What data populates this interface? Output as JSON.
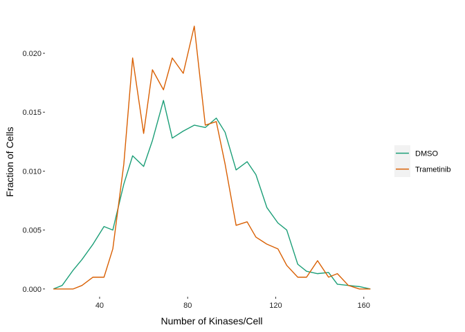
{
  "chart_data": {
    "type": "line",
    "title": "",
    "xlabel": "Number of Kinases/Cell",
    "ylabel": "Fraction of Cells",
    "xlim": [
      15.5,
      167
    ],
    "ylim": [
      -0.0006,
      0.0237
    ],
    "x_ticks": [
      40,
      80,
      120,
      160
    ],
    "x_tick_labels": [
      "40",
      "80",
      "120",
      "160"
    ],
    "y_ticks": [
      0.0,
      0.005,
      0.01,
      0.015,
      0.02
    ],
    "y_tick_labels": [
      "0.000",
      "0.005",
      "0.010",
      "0.015",
      "0.020"
    ],
    "grid": false,
    "legend_position": "right",
    "x": [
      19,
      23,
      28,
      32,
      37,
      42,
      46,
      51,
      55,
      60,
      64,
      69,
      73,
      78,
      83,
      88,
      93,
      97,
      102,
      107,
      111,
      116,
      121,
      125,
      130,
      134,
      139,
      144,
      148,
      153,
      158,
      163
    ],
    "series": [
      {
        "name": "DMSO",
        "color": "#1b9e77",
        "values": [
          0.0,
          0.0003,
          0.0016,
          0.0025,
          0.0038,
          0.0053,
          0.005,
          0.0089,
          0.0113,
          0.0104,
          0.0126,
          0.016,
          0.0128,
          0.0134,
          0.0139,
          0.0137,
          0.0145,
          0.0133,
          0.0101,
          0.0108,
          0.0097,
          0.0069,
          0.0056,
          0.005,
          0.0021,
          0.0015,
          0.0013,
          0.0014,
          0.0004,
          0.0003,
          0.0002,
          0.0
        ]
      },
      {
        "name": "Trametinib",
        "color": "#d95f02",
        "values": [
          0.0,
          0.0,
          0.0,
          0.0003,
          0.001,
          0.001,
          0.0034,
          0.0106,
          0.0196,
          0.0132,
          0.0186,
          0.0169,
          0.0196,
          0.0183,
          0.0223,
          0.0139,
          0.0142,
          0.0106,
          0.0054,
          0.0057,
          0.0044,
          0.0038,
          0.0034,
          0.002,
          0.001,
          0.001,
          0.0024,
          0.001,
          0.0013,
          0.0003,
          0.0,
          0.0
        ]
      }
    ]
  }
}
